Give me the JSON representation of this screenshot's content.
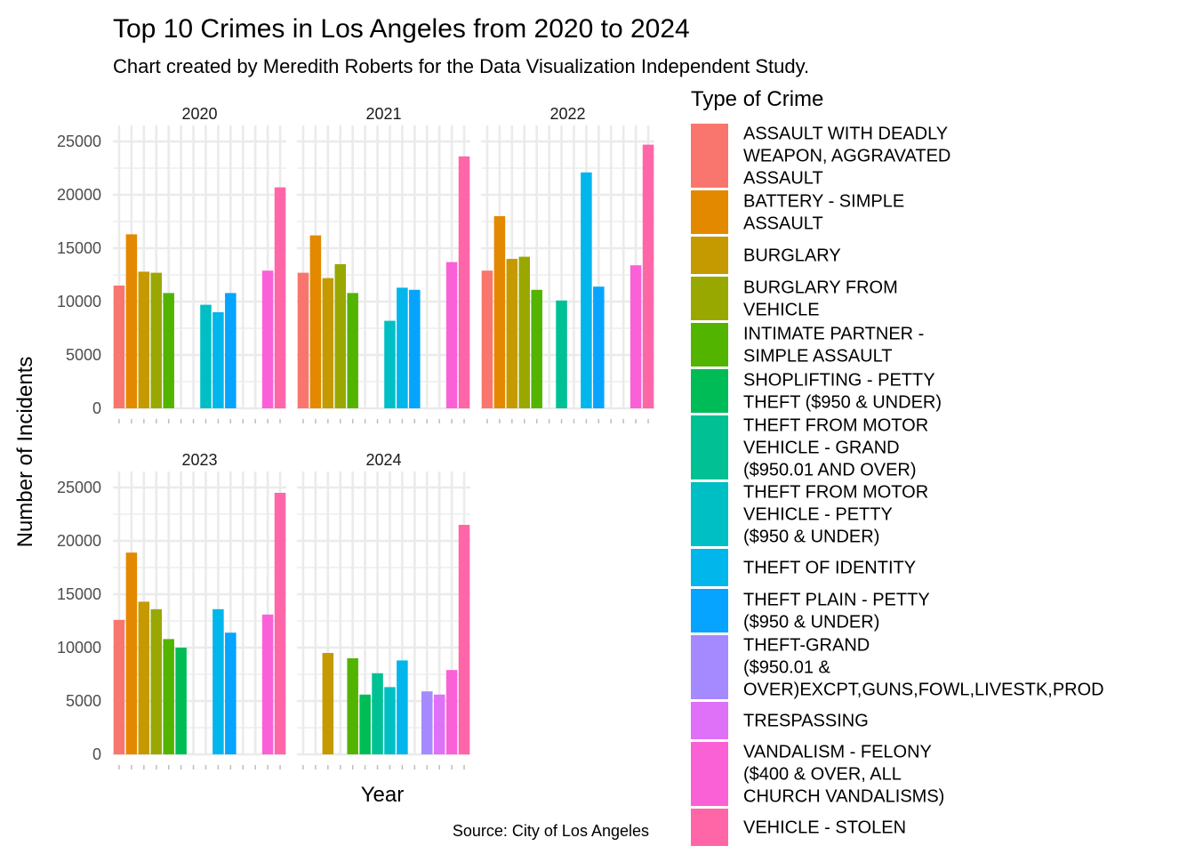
{
  "title": "Top 10 Crimes in Los Angeles from 2020 to 2024",
  "subtitle": "Chart created by Meredith Roberts for the Data Visualization Independent Study.",
  "caption": "Source: City of Los Angeles",
  "chart_data": {
    "type": "bar",
    "xlabel": "Year",
    "ylabel": "Number of Incidents",
    "ylim": [
      0,
      26500
    ],
    "yticks": [
      0,
      5000,
      10000,
      15000,
      20000,
      25000
    ],
    "grid": true,
    "legend_title": "Type of Crime",
    "legend_position": "right",
    "categories": [
      "ASSAULT WITH DEADLY WEAPON, AGGRAVATED ASSAULT",
      "BATTERY - SIMPLE ASSAULT",
      "BURGLARY",
      "BURGLARY FROM VEHICLE",
      "INTIMATE PARTNER - SIMPLE ASSAULT",
      "SHOPLIFTING - PETTY THEFT ($950 & UNDER)",
      "THEFT FROM MOTOR VEHICLE - GRAND ($950.01 AND OVER)",
      "THEFT FROM MOTOR VEHICLE - PETTY ($950 & UNDER)",
      "THEFT OF IDENTITY",
      "THEFT PLAIN - PETTY ($950 & UNDER)",
      "THEFT-GRAND ($950.01 & OVER)EXCPT,GUNS,FOWL,LIVESTK,PROD",
      "TRESPASSING",
      "VANDALISM - FELONY ($400 & OVER, ALL CHURCH VANDALISMS)",
      "VEHICLE - STOLEN"
    ],
    "legend_lines": [
      [
        "ASSAULT WITH DEADLY",
        "WEAPON, AGGRAVATED",
        "ASSAULT"
      ],
      [
        "BATTERY - SIMPLE",
        "ASSAULT"
      ],
      [
        "BURGLARY"
      ],
      [
        "BURGLARY FROM",
        "VEHICLE"
      ],
      [
        "INTIMATE PARTNER -",
        "SIMPLE ASSAULT"
      ],
      [
        "SHOPLIFTING - PETTY",
        "THEFT ($950 & UNDER)"
      ],
      [
        "THEFT FROM MOTOR",
        "VEHICLE - GRAND",
        "($950.01 AND OVER)"
      ],
      [
        "THEFT FROM MOTOR",
        "VEHICLE - PETTY",
        "($950 & UNDER)"
      ],
      [
        "THEFT OF IDENTITY"
      ],
      [
        "THEFT PLAIN - PETTY",
        "($950 & UNDER)"
      ],
      [
        "THEFT-GRAND",
        "($950.01 &",
        "OVER)EXCPT,GUNS,FOWL,LIVESTK,PROD"
      ],
      [
        "TRESPASSING"
      ],
      [
        "VANDALISM - FELONY",
        "($400 & OVER, ALL",
        "CHURCH VANDALISMS)"
      ],
      [
        "VEHICLE - STOLEN"
      ]
    ],
    "colors": [
      "#F8766D",
      "#E38900",
      "#C49A00",
      "#99A800",
      "#53B400",
      "#00BC56",
      "#00C094",
      "#00BFC4",
      "#00B6EB",
      "#06A4FF",
      "#A58AFF",
      "#DF70F8",
      "#FB61D7",
      "#FF66A8"
    ],
    "facets": [
      {
        "year": "2020",
        "values": [
          11500,
          16300,
          12800,
          12700,
          10800,
          null,
          null,
          9700,
          9000,
          10800,
          null,
          null,
          12900,
          20700
        ]
      },
      {
        "year": "2021",
        "values": [
          12700,
          16200,
          12200,
          13500,
          10800,
          null,
          null,
          8200,
          11300,
          11100,
          null,
          null,
          13700,
          23600
        ]
      },
      {
        "year": "2022",
        "values": [
          12900,
          18000,
          14000,
          14200,
          11100,
          null,
          10100,
          null,
          22100,
          11400,
          null,
          null,
          13400,
          24700
        ]
      },
      {
        "year": "2023",
        "values": [
          12600,
          18900,
          14300,
          13600,
          10800,
          10000,
          null,
          null,
          13600,
          11400,
          null,
          null,
          13100,
          24500
        ]
      },
      {
        "year": "2024",
        "values": [
          null,
          null,
          9500,
          null,
          9000,
          5600,
          7600,
          6300,
          8800,
          null,
          5900,
          5600,
          7900,
          21500
        ]
      }
    ]
  }
}
